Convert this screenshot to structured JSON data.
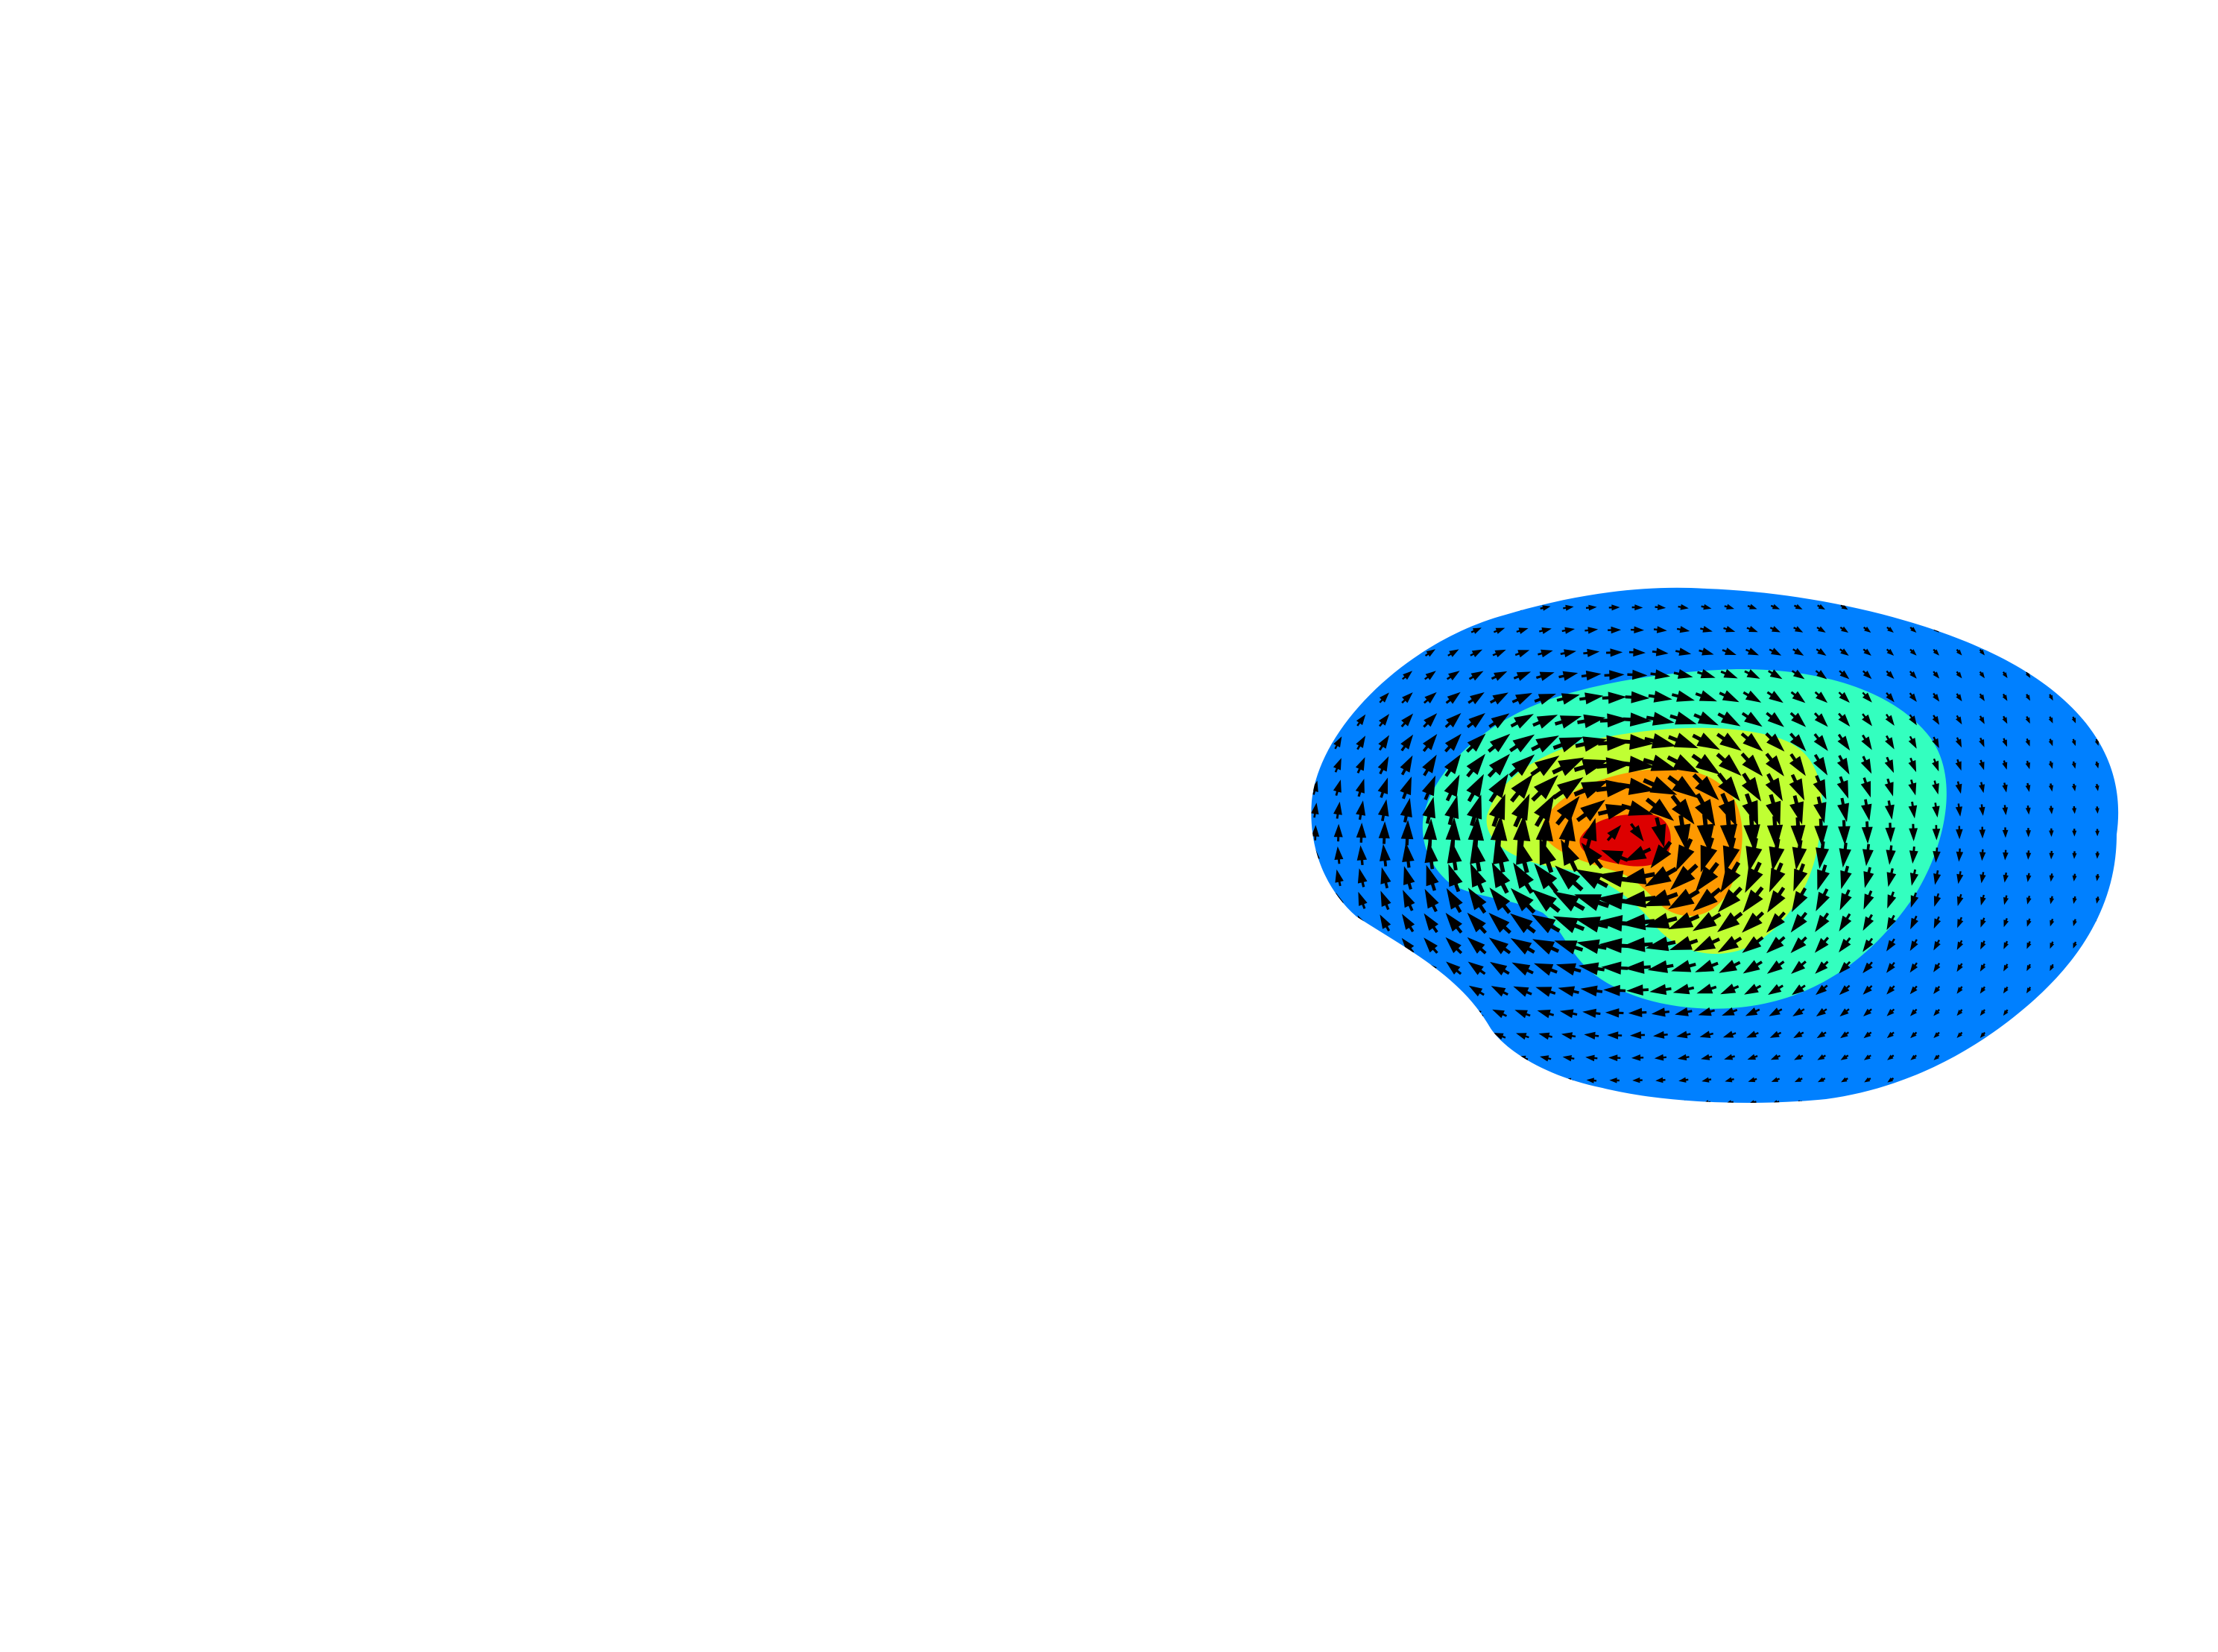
{
  "chart_data": {
    "type": "contour",
    "title": "",
    "xlabel": "",
    "ylabel": "",
    "axes_visible": false,
    "grid": false,
    "legend": "none",
    "background": "#ffffff",
    "field": {
      "kind": "vortex",
      "rotation": "clockwise",
      "levels": [
        {
          "level": 1,
          "color": "#0080ff"
        },
        {
          "level": 2,
          "color": "#33ffbf"
        },
        {
          "level": 3,
          "color": "#c0ff33"
        },
        {
          "level": 4,
          "color": "#ff9900"
        },
        {
          "level": 5,
          "color": "#dd0000"
        }
      ]
    },
    "quiver": {
      "color": "#000000",
      "grid_columns": 36,
      "grid_rows": 24
    }
  }
}
